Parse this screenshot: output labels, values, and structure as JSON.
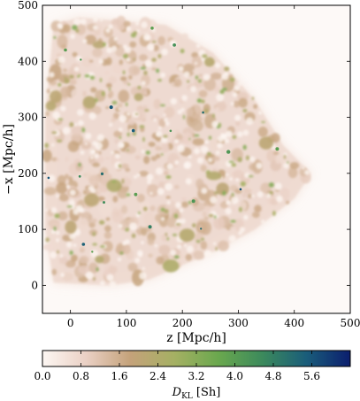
{
  "chart_data": {
    "type": "heatmap",
    "title": "",
    "xlabel": "z [Mpc/h]",
    "ylabel": "−x [Mpc/h]",
    "xlim": [
      -50,
      500
    ],
    "ylim": [
      -50,
      500
    ],
    "x_ticks": [
      0,
      100,
      200,
      300,
      400,
      500
    ],
    "y_ticks": [
      0,
      100,
      200,
      300,
      400,
      500
    ],
    "x_tick_labels": [
      "0",
      "100",
      "200",
      "300",
      "400",
      "500"
    ],
    "y_tick_labels": [
      "0",
      "100",
      "200",
      "300",
      "400",
      "500"
    ],
    "colorbar": {
      "label": "D_KL [Sh]",
      "label_main": "D",
      "label_sub": "KL",
      "label_unit": "[Sh]",
      "range": [
        0.0,
        6.4
      ],
      "ticks": [
        0.0,
        0.8,
        1.6,
        2.4,
        3.2,
        4.0,
        4.8,
        5.6
      ],
      "tick_labels": [
        "0.0",
        "0.8",
        "1.6",
        "2.4",
        "3.2",
        "4.0",
        "4.8",
        "5.6"
      ],
      "colors": [
        "#fdf7f3",
        "#ead0c4",
        "#c4a27a",
        "#a5b063",
        "#6aa84e",
        "#3c8a5c",
        "#1a5d7a",
        "#0b1e6e"
      ]
    },
    "survey_region_approx": {
      "polygon": [
        [
          -30,
          465
        ],
        [
          15,
          478
        ],
        [
          170,
          465
        ],
        [
          255,
          415
        ],
        [
          330,
          330
        ],
        [
          380,
          250
        ],
        [
          430,
          200
        ],
        [
          400,
          155
        ],
        [
          330,
          100
        ],
        [
          255,
          60
        ],
        [
          140,
          10
        ],
        [
          70,
          0
        ],
        [
          -30,
          5
        ],
        [
          -45,
          100
        ],
        [
          -45,
          300
        ]
      ],
      "typical_value": 1.0,
      "peak_value": 6.0
    }
  }
}
